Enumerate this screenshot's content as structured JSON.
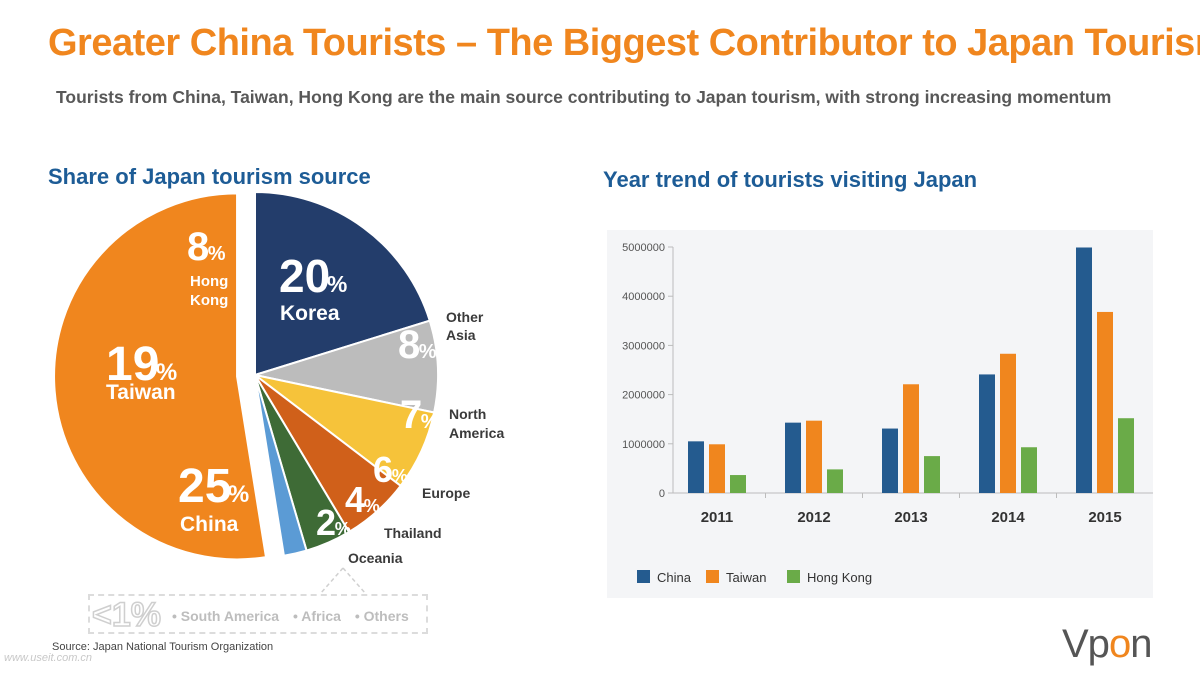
{
  "title": "Greater China Tourists – The Biggest Contributor to Japan Tourism",
  "subtitle": "Tourists from China, Taiwan, Hong Kong are the main source contributing to Japan tourism, with strong increasing momentum",
  "pie_section_title": "Share of Japan tourism source",
  "bar_section_title": "Year trend of tourists visiting Japan",
  "source_note": "Source: Japan National Tourism Organization",
  "logo": {
    "text_a": "Vp",
    "text_b": "o",
    "text_c": "n"
  },
  "watermark": "www.useit.com.cn",
  "colors": {
    "orange": "#f0861e",
    "navy": "#233d6b",
    "gray": "#bcbcbc",
    "yellow": "#f6c33a",
    "dark_orange": "#d0601a",
    "dark_green": "#3e6b36",
    "light_blue": "#5b9bd5",
    "china_bar": "#245b8f",
    "taiwan_bar": "#f0861e",
    "hk_bar": "#6aab48"
  },
  "less_than": {
    "label": "<1%",
    "items": [
      "• South America",
      "• Africa",
      "• Others"
    ]
  },
  "chart_data": [
    {
      "type": "pie",
      "title": "Share of Japan tourism source",
      "slices": [
        {
          "label": "Korea",
          "value": 20,
          "pct_text": "20",
          "color": "#233d6b"
        },
        {
          "label": "Other Asia",
          "value": 8,
          "pct_text": "8",
          "color": "#bcbcbc"
        },
        {
          "label": "North America",
          "value": 7,
          "pct_text": "7",
          "color": "#f6c33a"
        },
        {
          "label": "Europe",
          "value": 6,
          "pct_text": "6",
          "color": "#d0601a"
        },
        {
          "label": "Thailand",
          "value": 4,
          "pct_text": "4",
          "color": "#3e6b36"
        },
        {
          "label": "Oceania",
          "value": 2,
          "pct_text": "2",
          "color": "#5b9bd5"
        },
        {
          "label": "China",
          "value": 25,
          "pct_text": "25",
          "color": "#f0861e"
        },
        {
          "label": "Taiwan",
          "value": 19,
          "pct_text": "19",
          "color": "#f0861e"
        },
        {
          "label": "Hong Kong",
          "value": 8,
          "pct_text": "8",
          "color": "#f0861e"
        }
      ],
      "outside_labels": {
        "other_asia": [
          "Other",
          "Asia"
        ],
        "north_america": [
          "North",
          "America"
        ],
        "europe": "Europe",
        "thailand": "Thailand",
        "oceania": "Oceania"
      },
      "inside_labels": {
        "korea": "Korea",
        "china": "China",
        "taiwan": "Taiwan",
        "hong_kong": [
          "Hong",
          "Kong"
        ]
      },
      "percent_sign": "%"
    },
    {
      "type": "bar",
      "title": "Year trend of tourists visiting Japan",
      "categories": [
        "2011",
        "2012",
        "2013",
        "2014",
        "2015"
      ],
      "series": [
        {
          "name": "China",
          "values": [
            1050000,
            1430000,
            1310000,
            2410000,
            4990000
          ],
          "color": "#245b8f"
        },
        {
          "name": "Taiwan",
          "values": [
            990000,
            1470000,
            2210000,
            2830000,
            3680000
          ],
          "color": "#f0861e"
        },
        {
          "name": "Hong Kong",
          "values": [
            365000,
            480000,
            750000,
            930000,
            1520000
          ],
          "color": "#6aab48"
        }
      ],
      "ylim": [
        0,
        5000000
      ],
      "yticks": [
        "0",
        "1000000",
        "2000000",
        "3000000",
        "4000000",
        "5000000"
      ],
      "legend_position": "bottom-left",
      "grid": false
    }
  ]
}
